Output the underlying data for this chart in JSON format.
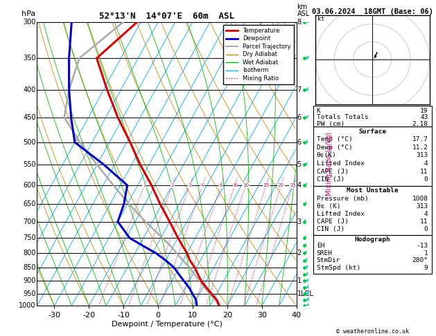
{
  "title_left": "52°13'N  14°07'E  60m  ASL",
  "title_right": "03.06.2024  18GMT (Base: 06)",
  "xlabel": "Dewpoint / Temperature (°C)",
  "xlim": [
    -35,
    40
  ],
  "ylim_log": [
    1000,
    300
  ],
  "skew_factor": 45.0,
  "isotherm_color": "#00aaff",
  "dry_adiabat_color": "#cc8800",
  "wet_adiabat_color": "#00bb00",
  "mixing_ratio_color": "#cc0066",
  "temp_color": "#dd0000",
  "dewp_color": "#0000cc",
  "parcel_color": "#aaaaaa",
  "temp_profile_p": [
    1000,
    975,
    950,
    925,
    900,
    875,
    850,
    825,
    800,
    775,
    750,
    700,
    650,
    600,
    550,
    500,
    450,
    400,
    350,
    300
  ],
  "temp_profile_t": [
    17.7,
    16.0,
    13.5,
    11.0,
    8.5,
    6.5,
    4.5,
    2.0,
    0.0,
    -2.5,
    -5.0,
    -10.0,
    -15.5,
    -21.0,
    -27.5,
    -34.0,
    -41.5,
    -49.0,
    -57.0,
    -51.0
  ],
  "dewp_profile_p": [
    1000,
    975,
    950,
    925,
    900,
    875,
    850,
    825,
    800,
    775,
    750,
    700,
    650,
    600,
    550,
    500,
    450,
    400,
    350,
    300
  ],
  "dewp_profile_t": [
    11.2,
    10.0,
    8.0,
    6.0,
    3.5,
    1.0,
    -1.5,
    -5.0,
    -9.0,
    -14.0,
    -19.0,
    -25.0,
    -26.0,
    -28.0,
    -38.0,
    -50.0,
    -55.0,
    -60.0,
    -65.0,
    -70.0
  ],
  "parcel_profile_p": [
    1000,
    975,
    950,
    925,
    900,
    875,
    850,
    825,
    800,
    775,
    750,
    700,
    650,
    600,
    550,
    500,
    450,
    400,
    350,
    300
  ],
  "parcel_profile_t": [
    17.7,
    15.5,
    13.0,
    10.5,
    8.0,
    5.5,
    3.0,
    0.0,
    -3.0,
    -6.0,
    -9.5,
    -17.0,
    -24.5,
    -32.0,
    -40.0,
    -48.5,
    -57.0,
    -60.0,
    -62.0,
    -55.0
  ],
  "mixing_ratio_values": [
    1,
    2,
    3,
    4,
    6,
    8,
    10,
    15,
    20,
    25
  ],
  "km_labels": {
    "300": "8",
    "400": "7",
    "450": "6",
    "500": "6",
    "550": "5",
    "600": "4",
    "700": "3",
    "800": "2",
    "900": "1",
    "950": "1LCL"
  },
  "info_panel": {
    "K": 19,
    "Totals Totals": 43,
    "PW (cm)": "2.18",
    "Surface": {
      "Temp (C)": "17.7",
      "Dewp (C)": "11.2",
      "theta_e (K)": "313",
      "Lifted Index": "4",
      "CAPE (J)": "11",
      "CIN (J)": "0"
    },
    "Most Unstable": {
      "Pressure (mb)": "1008",
      "theta_e (K)": "313",
      "Lifted Index": "4",
      "CAPE (J)": "11",
      "CIN (J)": "0"
    },
    "Hodograph": {
      "EH": "-13",
      "SREH": "1",
      "StmDir": "280°",
      "StmSpd (kt)": "9"
    }
  },
  "wind_p_levels": [
    1000,
    975,
    950,
    925,
    900,
    875,
    850,
    825,
    800,
    775,
    750,
    700,
    650,
    600,
    550,
    500,
    450,
    400,
    350,
    300
  ],
  "wind_speeds": [
    9,
    8,
    7,
    6,
    5,
    6,
    7,
    8,
    9,
    9,
    9,
    8,
    7,
    6,
    5,
    5,
    5,
    5,
    5,
    5
  ],
  "wind_dirs": [
    280,
    270,
    260,
    250,
    240,
    230,
    220,
    210,
    200,
    190,
    180,
    180,
    190,
    200,
    210,
    220,
    230,
    240,
    250,
    260
  ],
  "background_color": "#ffffff"
}
